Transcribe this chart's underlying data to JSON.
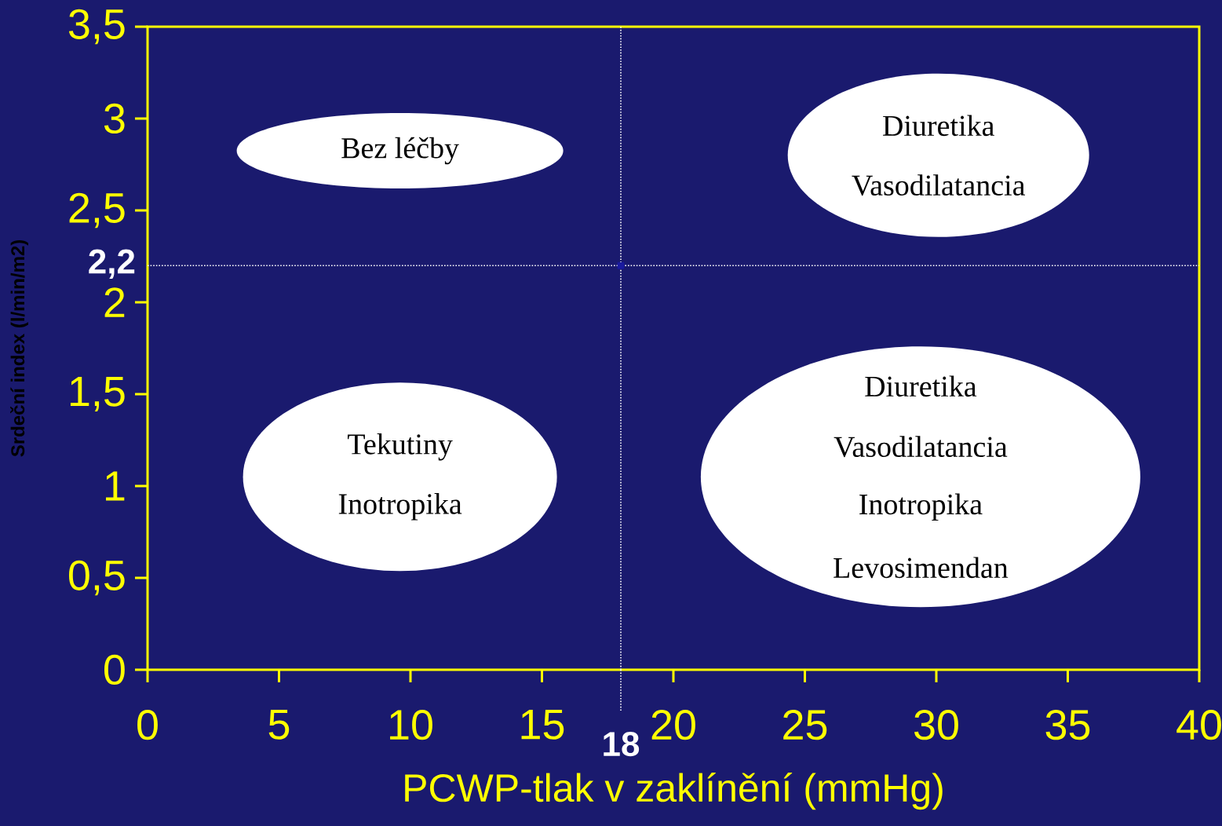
{
  "chart_data": {
    "type": "scatter",
    "x": [
      18
    ],
    "values": [
      2.2
    ],
    "color": "#1a1a9e",
    "marker": "square",
    "xlabel": "PCWP-tlak v zaklínění (mmHg)",
    "ylabel": "Srdeční index (l/min/m2)",
    "xlim": [
      0,
      40
    ],
    "ylim": [
      0,
      3.5
    ],
    "xticks": [
      0,
      5,
      10,
      15,
      20,
      25,
      30,
      35,
      40
    ],
    "yticks": [
      0,
      {
        "value": 0.5,
        "label": "0,5"
      },
      1,
      {
        "value": 1.5,
        "label": "1,5"
      },
      2,
      {
        "value": 2.5,
        "label": "2,5"
      },
      3,
      {
        "value": 3.5,
        "label": "3,5"
      }
    ],
    "ref_lines": [
      {
        "axis": "x",
        "value": 18,
        "label": "18",
        "color": "#ffffff",
        "line_style": "dotted"
      },
      {
        "axis": "y",
        "value": 2.2,
        "label": "2,2",
        "color": "#ffffff",
        "line_style": "dotted"
      }
    ],
    "annotations": [
      "Bez léčby",
      "Diuretika",
      "Vasodilatancia",
      "Tekutiny",
      "Inotropika",
      "Diuretika",
      "Vasodilatancia",
      "Inotropika",
      "Levosimendan"
    ]
  }
}
